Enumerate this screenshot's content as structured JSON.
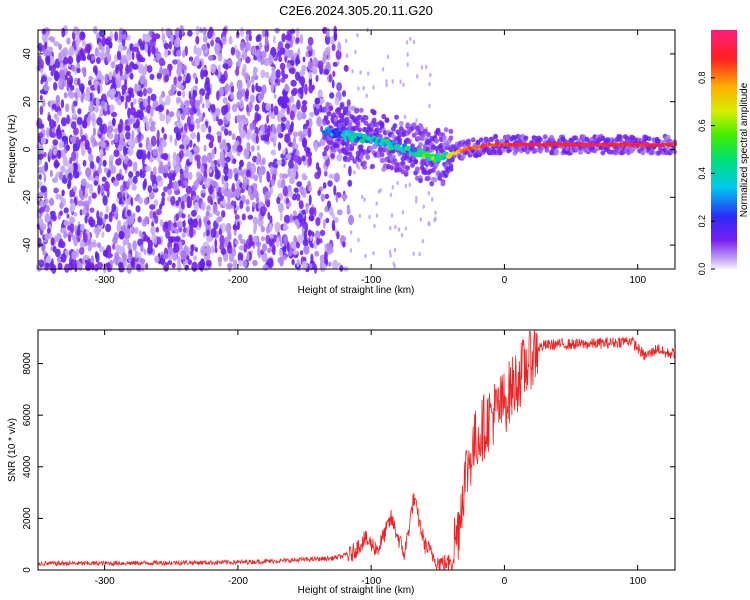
{
  "figure": {
    "title": "C2E6.2024.305.20.11.G20"
  },
  "colors": {
    "snr_line": "#ee2222",
    "axis": "#000000",
    "spectro_base": "#7a1ef0",
    "spectro_light": "#c9b4f5"
  },
  "chart_data": [
    {
      "type": "heatmap",
      "xlabel": "Height of straight line (km)",
      "ylabel": "Frequency (Hz)",
      "xlim": [
        -350,
        128
      ],
      "ylim": [
        -50,
        50
      ],
      "x_ticks": [
        -300,
        -200,
        -100,
        0,
        100
      ],
      "y_ticks": [
        -40,
        -20,
        0,
        20,
        40
      ],
      "colorbar": {
        "label": "Normalized spectral amplitude",
        "range": [
          0.0,
          1.0
        ],
        "ticks": [
          "0.0",
          "0.2",
          "0.4",
          "0.6",
          "0.8"
        ],
        "tick_values": [
          0.0,
          0.2,
          0.4,
          0.6,
          0.8
        ]
      },
      "features": {
        "noise_region_x": [
          -350,
          -130
        ],
        "noise_amplitude": 0.1,
        "signal_track": {
          "x": [
            -135,
            -120,
            -100,
            -80,
            -65,
            -55,
            -45,
            -30,
            -10,
            20,
            60,
            100,
            128
          ],
          "frequency": [
            8,
            6,
            4,
            1,
            -1,
            -4,
            -3,
            0,
            2,
            2,
            2,
            2,
            2
          ],
          "amplitude": [
            0.35,
            0.4,
            0.45,
            0.5,
            0.45,
            0.7,
            0.6,
            0.85,
            0.9,
            0.95,
            0.95,
            0.92,
            0.9
          ]
        }
      }
    },
    {
      "type": "line",
      "xlabel": "Height of straight line (km)",
      "ylabel": "SNR (10 * v/v)",
      "xlim": [
        -350,
        128
      ],
      "ylim": [
        0,
        9300
      ],
      "x_ticks": [
        -300,
        -200,
        -100,
        0,
        100
      ],
      "y_ticks": [
        0,
        2000,
        4000,
        6000,
        8000
      ],
      "series": [
        {
          "x": [
            -350,
            -300,
            -250,
            -200,
            -170,
            -150,
            -130,
            -115,
            -105,
            -95,
            -85,
            -75,
            -68,
            -60,
            -50,
            -42,
            -35,
            -30,
            -25,
            -20,
            -15,
            -10,
            -5,
            0,
            5,
            10,
            15,
            20,
            25,
            30,
            40,
            60,
            80,
            95,
            100,
            105,
            110,
            115,
            120,
            128
          ],
          "y": [
            250,
            260,
            280,
            300,
            350,
            400,
            450,
            600,
            1200,
            800,
            2000,
            600,
            2800,
            1000,
            300,
            250,
            1500,
            3500,
            4500,
            5200,
            5600,
            6000,
            6200,
            6500,
            7000,
            7400,
            7800,
            8300,
            8600,
            8700,
            8750,
            8750,
            8800,
            8900,
            8600,
            8300,
            8400,
            8600,
            8400,
            8400
          ]
        }
      ]
    }
  ]
}
